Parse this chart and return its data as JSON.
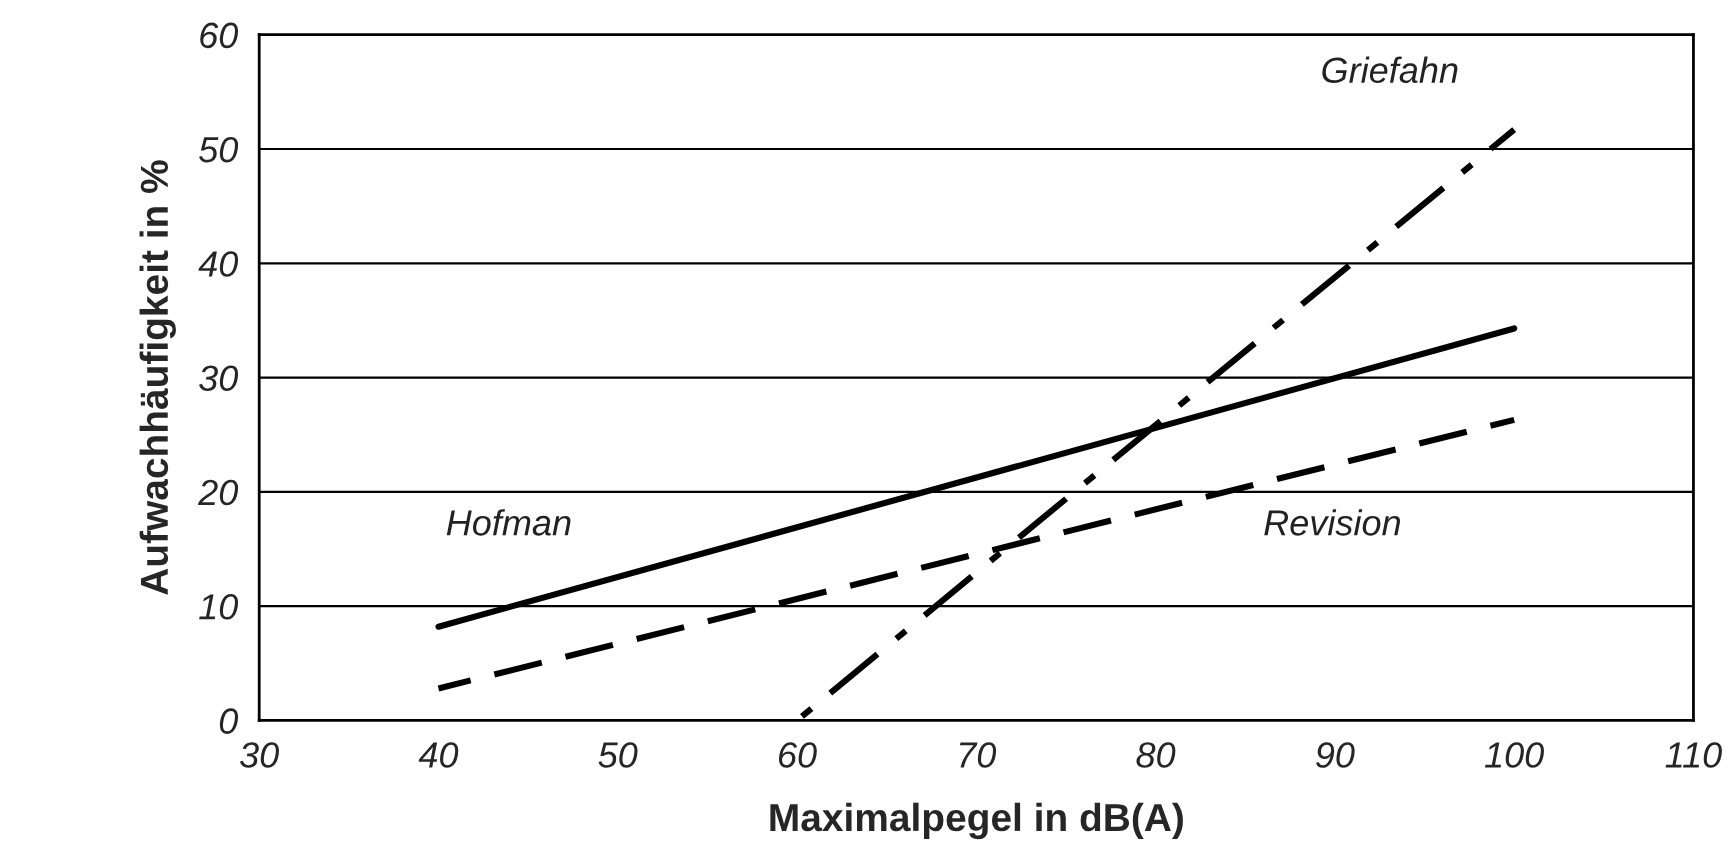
{
  "chart_data": {
    "type": "line",
    "xlabel": "Maximalpegel in dB(A)",
    "ylabel": "Aufwachhäufigkeit in %",
    "xlim": [
      30,
      110
    ],
    "xticks": [
      30,
      40,
      50,
      60,
      70,
      80,
      90,
      100,
      110
    ],
    "ylim": [
      0,
      60
    ],
    "yticks": [
      0,
      10,
      20,
      30,
      40,
      50,
      60
    ],
    "grid": "y",
    "legend": false,
    "series": [
      {
        "name": "Hofman",
        "color": "#000000",
        "line_style": "solid",
        "x": [
          40,
          100
        ],
        "values": [
          8.2,
          34.3
        ]
      },
      {
        "name": "Revision",
        "color": "#000000",
        "line_style": "dashed",
        "x": [
          40,
          100
        ],
        "values": [
          2.8,
          26.3
        ]
      },
      {
        "name": "Griefahn",
        "color": "#000000",
        "line_style": "dashdot",
        "x": [
          60,
          100
        ],
        "values": [
          0,
          51.7
        ]
      }
    ]
  }
}
